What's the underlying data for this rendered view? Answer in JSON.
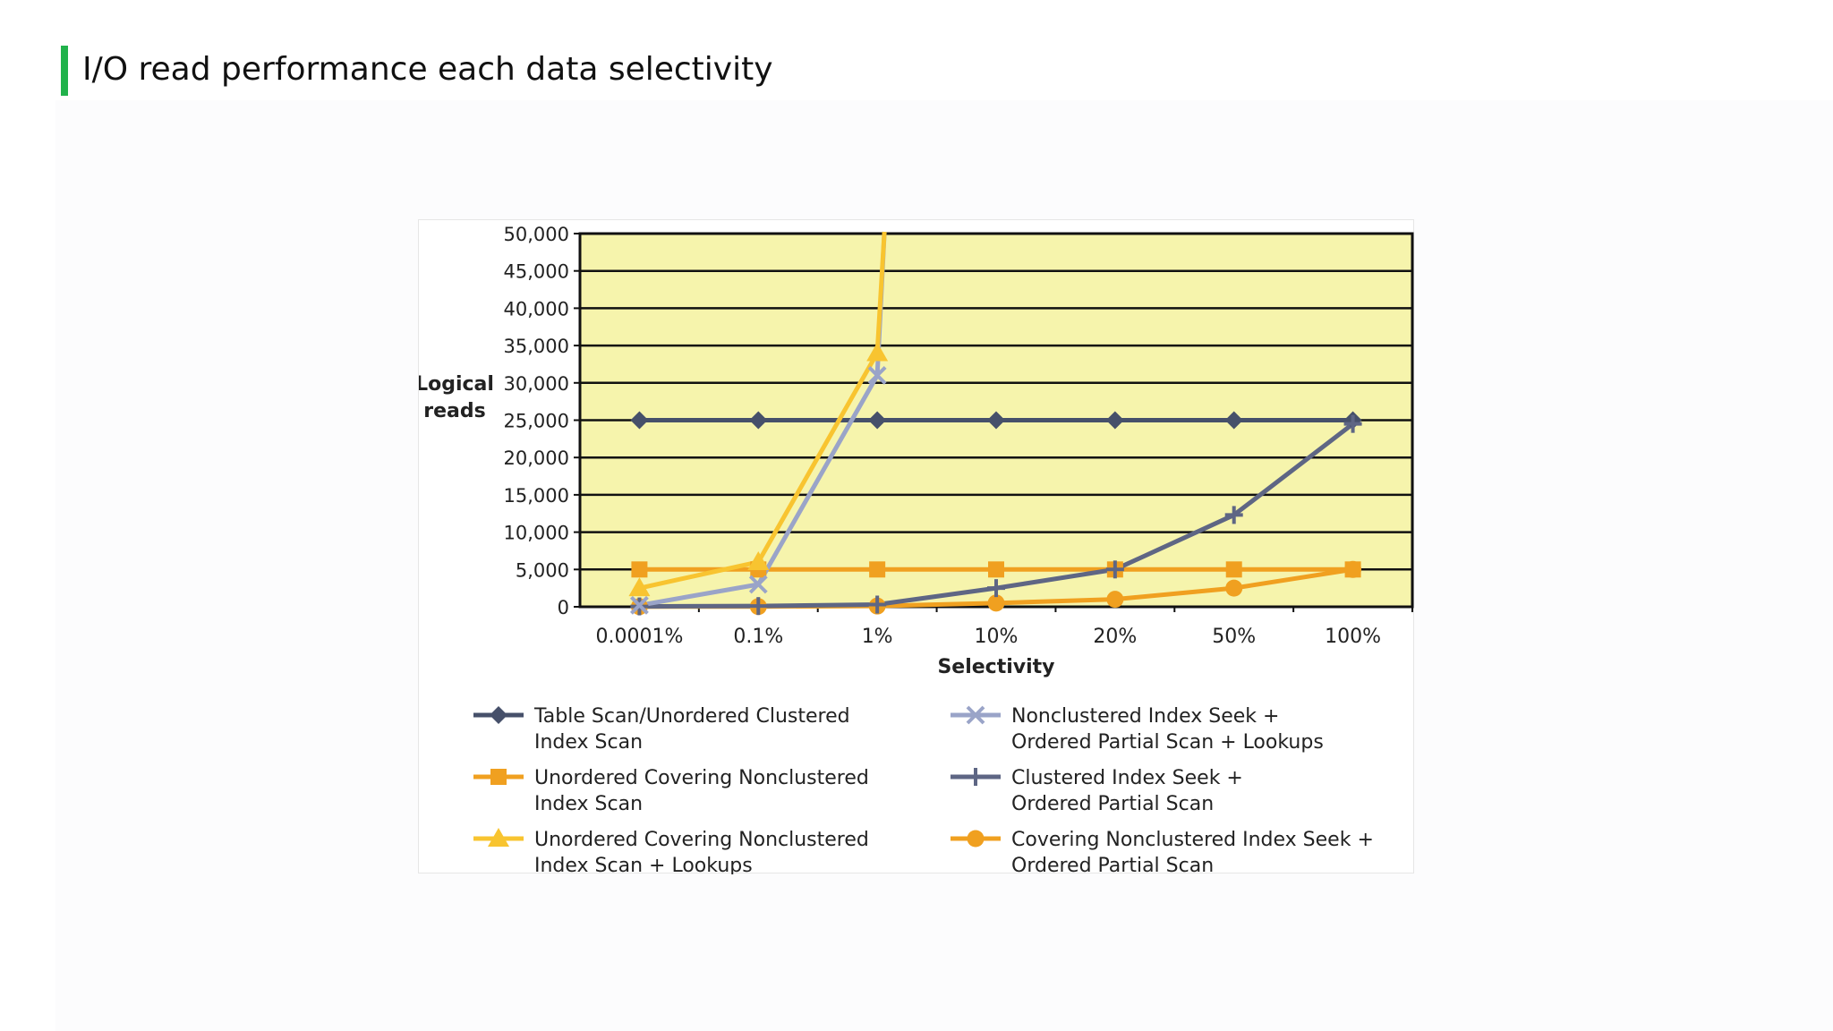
{
  "slide": {
    "title": "I/O read performance each data selectivity"
  },
  "colors": {
    "accent_bar": "#21b24b",
    "plot_background": "#f6f4ac"
  },
  "chart_data": {
    "type": "line",
    "title": "",
    "xlabel": "Selectivity",
    "ylabel": "Logical reads",
    "ylim": [
      0,
      50000
    ],
    "y_ticks": [
      "50,000",
      "45,000",
      "40,000",
      "35,000",
      "30,000",
      "25,000",
      "20,000",
      "15,000",
      "10,000",
      "5,000",
      "0"
    ],
    "categories": [
      "0.0001%",
      "0.1%",
      "1%",
      "10%",
      "20%",
      "50%",
      "100%"
    ],
    "grid": true,
    "legend_position": "bottom",
    "series": [
      {
        "name": "Table Scan/Unordered Clustered Index Scan",
        "color": "#46506a",
        "marker": "diamond",
        "values": [
          25000,
          25000,
          25000,
          25000,
          25000,
          25000,
          25000
        ]
      },
      {
        "name": "Unordered Covering Nonclustered Index Scan",
        "color": "#f0a020",
        "marker": "square",
        "values": [
          5000,
          5000,
          5000,
          5000,
          5000,
          5000,
          5000
        ]
      },
      {
        "name": "Unordered Covering Nonclustered Index Scan + Lookups",
        "color": "#f8c430",
        "marker": "triangle",
        "values": [
          2500,
          6000,
          34000,
          null,
          null,
          null,
          null
        ],
        "overflow_after": 2
      },
      {
        "name": "Nonclustered Index Seek + Ordered Partial Scan + Lookups",
        "color": "#9aa4c8",
        "marker": "x",
        "values": [
          200,
          3000,
          31000,
          null,
          null,
          null,
          null
        ],
        "overflow_after": 2
      },
      {
        "name": "Clustered Index Seek + Ordered Partial Scan",
        "color": "#5e6684",
        "marker": "plus",
        "values": [
          50,
          100,
          300,
          2500,
          5000,
          12300,
          24500
        ]
      },
      {
        "name": "Covering Nonclustered Index Seek + Ordered Partial Scan",
        "color": "#f0a020",
        "marker": "circle",
        "values": [
          20,
          30,
          100,
          500,
          1000,
          2500,
          5000
        ]
      }
    ],
    "legend": [
      {
        "series": 0,
        "lines": [
          "Table Scan/Unordered Clustered",
          "Index Scan"
        ]
      },
      {
        "series": 3,
        "lines": [
          "Nonclustered Index Seek +",
          "Ordered Partial Scan + Lookups"
        ]
      },
      {
        "series": 1,
        "lines": [
          "Unordered Covering Nonclustered",
          "Index Scan"
        ]
      },
      {
        "series": 4,
        "lines": [
          "Clustered Index Seek +",
          "Ordered Partial Scan"
        ]
      },
      {
        "series": 2,
        "lines": [
          "Unordered Covering Nonclustered",
          "Index Scan + Lookups"
        ]
      },
      {
        "series": 5,
        "lines": [
          "Covering Nonclustered Index Seek +",
          "Ordered Partial Scan"
        ]
      }
    ],
    "ylabel_lines": [
      "Logical",
      "reads"
    ]
  }
}
